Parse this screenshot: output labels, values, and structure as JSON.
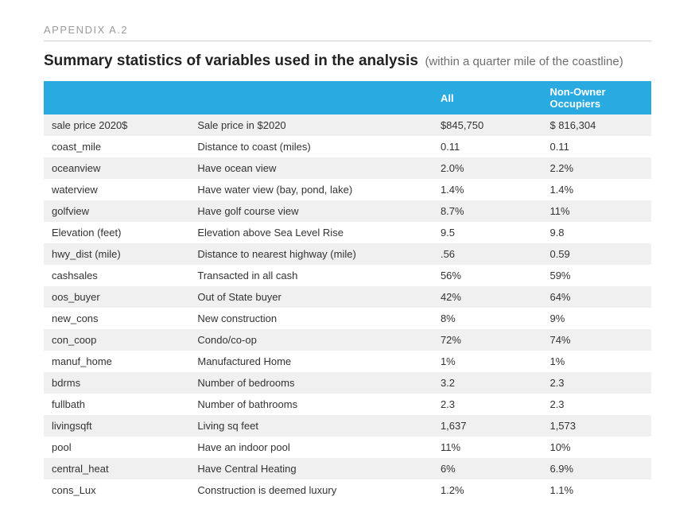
{
  "appendix_label": "APPENDIX A.2",
  "title_main": "Summary statistics of variables used in the analysis",
  "title_sub": "(within a quarter mile of the coastline)",
  "header_bg": "#29abe2",
  "row_alt_bg": "#f0f0f0",
  "columns": {
    "col0": "",
    "col1": "",
    "col2": "All",
    "col3": "Non-Owner Occupiers"
  },
  "rows": [
    {
      "var": "sale price 2020$",
      "desc": "Sale price in $2020",
      "all": "$845,750",
      "noo": "$ 816,304"
    },
    {
      "var": "coast_mile",
      "desc": "Distance to coast (miles)",
      "all": "0.11",
      "noo": "0.11"
    },
    {
      "var": "oceanview",
      "desc": "Have ocean view",
      "all": "2.0%",
      "noo": "2.2%"
    },
    {
      "var": "waterview",
      "desc": "Have water view (bay, pond, lake)",
      "all": "1.4%",
      "noo": "1.4%"
    },
    {
      "var": "golfview",
      "desc": "Have golf course view",
      "all": "8.7%",
      "noo": "11%"
    },
    {
      "var": "Elevation (feet)",
      "desc": "Elevation above Sea Level Rise",
      "all": "9.5",
      "noo": "9.8"
    },
    {
      "var": "hwy_dist (mile)",
      "desc": "Distance to nearest highway (mile)",
      "all": ".56",
      "noo": "0.59"
    },
    {
      "var": "cashsales",
      "desc": "Transacted in all cash",
      "all": "56%",
      "noo": "59%"
    },
    {
      "var": "oos_buyer",
      "desc": "Out of State buyer",
      "all": "42%",
      "noo": "64%"
    },
    {
      "var": "new_cons",
      "desc": "New construction",
      "all": "8%",
      "noo": "9%"
    },
    {
      "var": "con_coop",
      "desc": "Condo/co-op",
      "all": "72%",
      "noo": "74%"
    },
    {
      "var": "manuf_home",
      "desc": "Manufactured Home",
      "all": "1%",
      "noo": "1%"
    },
    {
      "var": "bdrms",
      "desc": "Number of bedrooms",
      "all": "3.2",
      "noo": "2.3"
    },
    {
      "var": "fullbath",
      "desc": "Number of bathrooms",
      "all": "2.3",
      "noo": "2.3"
    },
    {
      "var": "livingsqft",
      "desc": "Living sq feet",
      "all": "1,637",
      "noo": "1,573"
    },
    {
      "var": "pool",
      "desc": "Have an indoor pool",
      "all": "11%",
      "noo": "10%"
    },
    {
      "var": "central_heat",
      "desc": "Have Central Heating",
      "all": "6%",
      "noo": "6.9%"
    },
    {
      "var": "cons_Lux",
      "desc": "Construction is deemed luxury",
      "all": "1.2%",
      "noo": "1.1%"
    }
  ]
}
